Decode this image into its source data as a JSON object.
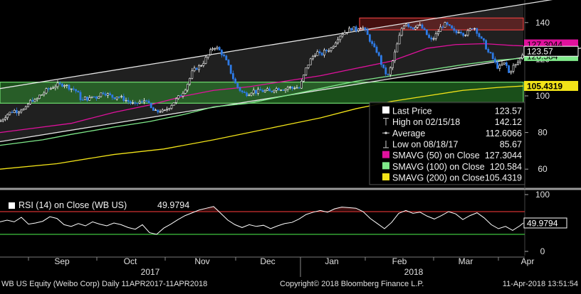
{
  "chart_data": [
    {
      "type": "candlestick",
      "panel": "price",
      "ylim": [
        50,
        150
      ],
      "yticks": [
        60,
        80,
        100,
        120,
        140
      ],
      "y_axis_side": "right",
      "grid": false,
      "x_tick_labels": [
        "Sep",
        "Oct",
        "Nov",
        "Dec",
        "Jan",
        "Feb",
        "Mar",
        "Apr"
      ],
      "year_labels": [
        "2017",
        "2018"
      ],
      "price_path": [
        [
          0,
          86
        ],
        [
          5,
          88
        ],
        [
          10,
          90
        ],
        [
          15,
          91
        ],
        [
          20,
          92
        ],
        [
          25,
          91.5
        ],
        [
          30,
          93
        ],
        [
          35,
          92
        ],
        [
          40,
          96
        ],
        [
          45,
          98
        ],
        [
          50,
          97
        ],
        [
          55,
          100
        ],
        [
          60,
          101
        ],
        [
          65,
          103
        ],
        [
          70,
          104
        ],
        [
          75,
          105
        ],
        [
          80,
          106
        ],
        [
          85,
          106
        ],
        [
          90,
          106.5
        ],
        [
          95,
          105
        ],
        [
          100,
          104
        ],
        [
          105,
          103.5
        ],
        [
          110,
          101
        ],
        [
          115,
          97
        ],
        [
          120,
          99
        ],
        [
          125,
          98
        ],
        [
          130,
          100
        ],
        [
          135,
          99
        ],
        [
          140,
          101
        ],
        [
          145,
          102
        ],
        [
          150,
          101
        ],
        [
          155,
          100
        ],
        [
          160,
          99
        ],
        [
          165,
          100
        ],
        [
          170,
          99
        ],
        [
          175,
          98
        ],
        [
          180,
          97
        ],
        [
          185,
          96
        ],
        [
          190,
          95
        ],
        [
          195,
          97
        ],
        [
          200,
          96
        ],
        [
          205,
          99
        ],
        [
          210,
          94
        ],
        [
          215,
          92
        ],
        [
          220,
          91
        ],
        [
          225,
          92
        ],
        [
          230,
          91
        ],
        [
          235,
          93
        ],
        [
          240,
          95
        ],
        [
          245,
          97
        ],
        [
          250,
          99
        ],
        [
          255,
          101
        ],
        [
          260,
          104
        ],
        [
          265,
          108
        ],
        [
          270,
          113
        ],
        [
          275,
          115
        ],
        [
          280,
          116
        ],
        [
          285,
          118
        ],
        [
          290,
          121
        ],
        [
          295,
          124
        ],
        [
          300,
          127
        ],
        [
          305,
          126
        ],
        [
          310,
          124
        ],
        [
          315,
          121
        ],
        [
          320,
          117
        ],
        [
          325,
          112
        ],
        [
          330,
          107
        ],
        [
          335,
          104
        ],
        [
          340,
          102
        ],
        [
          345,
          101
        ],
        [
          350,
          101.5
        ],
        [
          355,
          103
        ],
        [
          360,
          102
        ],
        [
          365,
          103
        ],
        [
          370,
          102.5
        ],
        [
          375,
          103
        ],
        [
          380,
          102
        ],
        [
          385,
          104
        ],
        [
          390,
          104
        ],
        [
          395,
          104
        ],
        [
          400,
          103.5
        ],
        [
          405,
          105
        ],
        [
          410,
          104
        ],
        [
          415,
          105
        ],
        [
          420,
          104
        ],
        [
          425,
          109
        ],
        [
          430,
          115
        ],
        [
          435,
          119
        ],
        [
          440,
          122
        ],
        [
          445,
          124
        ],
        [
          450,
          122
        ],
        [
          455,
          124
        ],
        [
          460,
          125
        ],
        [
          465,
          126
        ],
        [
          470,
          129
        ],
        [
          475,
          132
        ],
        [
          480,
          134
        ],
        [
          485,
          135
        ],
        [
          490,
          136
        ],
        [
          495,
          137
        ],
        [
          500,
          136
        ],
        [
          505,
          138
        ],
        [
          510,
          137
        ],
        [
          515,
          134
        ],
        [
          520,
          130
        ],
        [
          525,
          126
        ],
        [
          530,
          124
        ],
        [
          535,
          118
        ],
        [
          540,
          113
        ],
        [
          545,
          111
        ],
        [
          550,
          117
        ],
        [
          555,
          124
        ],
        [
          560,
          131
        ],
        [
          565,
          138
        ],
        [
          570,
          140
        ],
        [
          575,
          138
        ],
        [
          580,
          137
        ],
        [
          585,
          139
        ],
        [
          590,
          138
        ],
        [
          595,
          136
        ],
        [
          600,
          133
        ],
        [
          605,
          130
        ],
        [
          610,
          132
        ],
        [
          615,
          135
        ],
        [
          620,
          138
        ],
        [
          625,
          139
        ],
        [
          630,
          138
        ],
        [
          635,
          136
        ],
        [
          640,
          134
        ],
        [
          645,
          136
        ],
        [
          650,
          134
        ],
        [
          655,
          134
        ],
        [
          660,
          136
        ],
        [
          665,
          138
        ],
        [
          670,
          135
        ],
        [
          675,
          131
        ],
        [
          680,
          129
        ],
        [
          685,
          124
        ],
        [
          690,
          122
        ],
        [
          695,
          118
        ],
        [
          700,
          115
        ],
        [
          705,
          117
        ],
        [
          710,
          118
        ],
        [
          715,
          112
        ],
        [
          720,
          116
        ],
        [
          725,
          117
        ],
        [
          730,
          120
        ],
        [
          735,
          123.57
        ]
      ],
      "series": [
        {
          "name": "Last Price",
          "color": "#ffffff",
          "current": 123.57
        },
        {
          "name": "SMAVG (50) on Close",
          "color": "#e0119d",
          "current": 127.3044,
          "points": [
            [
              0,
              80
            ],
            [
              60,
              83
            ],
            [
              100,
              85
            ],
            [
              160,
              91
            ],
            [
              210,
              95
            ],
            [
              260,
              100
            ],
            [
              300,
              103
            ],
            [
              350,
              105
            ],
            [
              400,
              108
            ],
            [
              450,
              111
            ],
            [
              500,
              115
            ],
            [
              550,
              119
            ],
            [
              600,
              126
            ],
            [
              640,
              128
            ],
            [
              680,
              128.5
            ],
            [
              700,
              128
            ],
            [
              720,
              127.5
            ],
            [
              735,
              127.3
            ]
          ]
        },
        {
          "name": "SMAVG (100) on Close",
          "color": "#7fe98a",
          "current": 120.584,
          "points": [
            [
              0,
              73
            ],
            [
              60,
              76
            ],
            [
              100,
              79
            ],
            [
              160,
              83
            ],
            [
              210,
              86
            ],
            [
              260,
              90
            ],
            [
              300,
              94
            ],
            [
              350,
              96
            ],
            [
              400,
              100
            ],
            [
              450,
              104
            ],
            [
              500,
              108
            ],
            [
              550,
              111
            ],
            [
              600,
              114
            ],
            [
              650,
              117
            ],
            [
              700,
              119.5
            ],
            [
              735,
              120.6
            ]
          ]
        },
        {
          "name": "SMAVG (200) on Close",
          "color": "#f2e318",
          "current": 105.4319,
          "points": [
            [
              0,
              60
            ],
            [
              80,
              63
            ],
            [
              160,
              68
            ],
            [
              230,
              71
            ],
            [
              300,
              76
            ],
            [
              350,
              80
            ],
            [
              400,
              84
            ],
            [
              450,
              88
            ],
            [
              500,
              93
            ],
            [
              550,
              97
            ],
            [
              600,
              100
            ],
            [
              650,
              103
            ],
            [
              700,
              104.6
            ],
            [
              735,
              105.4
            ]
          ]
        }
      ],
      "channel_upper": [
        [
          0,
          104
        ],
        [
          735,
          150
        ]
      ],
      "channel_lower": [
        [
          0,
          75
        ],
        [
          735,
          121
        ]
      ],
      "green_band": [
        96,
        107.5
      ],
      "red_band": [
        136,
        142.5
      ],
      "legend": {
        "placement": "inside-lower-right",
        "rows": [
          {
            "label": "Last Price",
            "value": "123.57",
            "marker": "box-white"
          },
          {
            "label": "High on 02/15/18",
            "value": "142.12",
            "marker": "high"
          },
          {
            "label": "Average",
            "value": "112.6066",
            "marker": "avg"
          },
          {
            "label": "Low on 08/18/17",
            "value": "85.67",
            "marker": "low"
          },
          {
            "label": "SMAVG (50) on Close",
            "value": "127.3044",
            "marker": "box-magenta"
          },
          {
            "label": "SMAVG (100) on Close",
            "value": "120.584",
            "marker": "box-green"
          },
          {
            "label": "SMAVG (200) on Close",
            "value": "105.4319",
            "marker": "box-yellow"
          }
        ]
      },
      "value_tags": [
        {
          "value": "127.3044",
          "bg": "#e0119d",
          "fg": "#000000"
        },
        {
          "value": "120.584",
          "bg": "#7fe98a",
          "fg": "#000000"
        },
        {
          "value": "123.57",
          "bg": "#000000",
          "fg": "#ffffff",
          "border": "#ffffff"
        },
        {
          "value": "105.4319",
          "bg": "#f2e318",
          "fg": "#000000"
        }
      ]
    },
    {
      "type": "line",
      "panel": "rsi",
      "title": "RSI (14) on Close (WB US)",
      "current": "49.9794",
      "ylim": [
        0,
        100
      ],
      "yticks": [
        0,
        50,
        100
      ],
      "overbought": 70,
      "oversold": 30,
      "values": [
        [
          0,
          52
        ],
        [
          10,
          55
        ],
        [
          20,
          52
        ],
        [
          30,
          60
        ],
        [
          40,
          48
        ],
        [
          50,
          50
        ],
        [
          60,
          53
        ],
        [
          70,
          61
        ],
        [
          80,
          58
        ],
        [
          90,
          47
        ],
        [
          100,
          44
        ],
        [
          110,
          49
        ],
        [
          120,
          45
        ],
        [
          130,
          52
        ],
        [
          140,
          48
        ],
        [
          150,
          45
        ],
        [
          160,
          50
        ],
        [
          170,
          47
        ],
        [
          180,
          42
        ],
        [
          190,
          39
        ],
        [
          200,
          47
        ],
        [
          210,
          33
        ],
        [
          220,
          30
        ],
        [
          230,
          41
        ],
        [
          240,
          48
        ],
        [
          250,
          56
        ],
        [
          260,
          63
        ],
        [
          270,
          68
        ],
        [
          280,
          73
        ],
        [
          290,
          76
        ],
        [
          300,
          79
        ],
        [
          310,
          67
        ],
        [
          320,
          55
        ],
        [
          330,
          47
        ],
        [
          340,
          42
        ],
        [
          350,
          47
        ],
        [
          360,
          44
        ],
        [
          370,
          46
        ],
        [
          380,
          40
        ],
        [
          390,
          45
        ],
        [
          400,
          49
        ],
        [
          410,
          51
        ],
        [
          420,
          57
        ],
        [
          430,
          65
        ],
        [
          440,
          69
        ],
        [
          450,
          72
        ],
        [
          460,
          69
        ],
        [
          470,
          75
        ],
        [
          480,
          78
        ],
        [
          490,
          77
        ],
        [
          500,
          76
        ],
        [
          510,
          70
        ],
        [
          520,
          58
        ],
        [
          530,
          49
        ],
        [
          540,
          40
        ],
        [
          550,
          51
        ],
        [
          560,
          67
        ],
        [
          570,
          72
        ],
        [
          580,
          67
        ],
        [
          590,
          69
        ],
        [
          600,
          62
        ],
        [
          610,
          57
        ],
        [
          620,
          63
        ],
        [
          630,
          70
        ],
        [
          640,
          66
        ],
        [
          650,
          56
        ],
        [
          660,
          63
        ],
        [
          670,
          68
        ],
        [
          680,
          59
        ],
        [
          690,
          47
        ],
        [
          700,
          40
        ],
        [
          710,
          44
        ],
        [
          720,
          37
        ],
        [
          730,
          45
        ],
        [
          735,
          49.98
        ]
      ]
    }
  ],
  "footer": {
    "left": "WB US Equity (Weibo Corp)  Daily 11APR2017-11APR2018",
    "center": "Copyright© 2018 Bloomberg Finance L.P.",
    "right": "11-Apr-2018 13:51:54"
  },
  "colors": {
    "background": "#000000",
    "bull_candle": "#ffffff",
    "bear_candle": "#2e7be6",
    "channel": "#e6e6e6",
    "axis_text": "#e0e0e0",
    "green_band": "#2f8f2f",
    "red_band": "#c42b2b"
  }
}
